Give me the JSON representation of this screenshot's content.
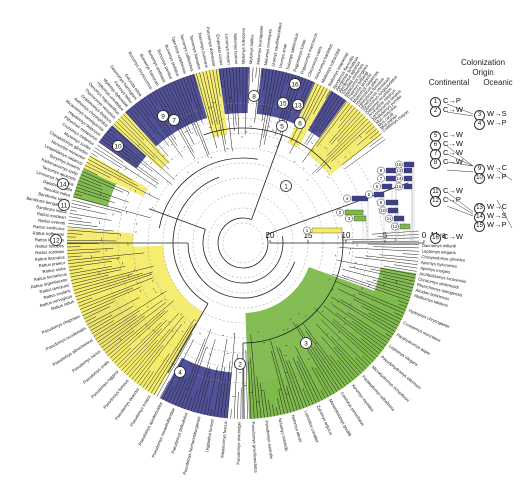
{
  "legend": {
    "title": "Colonization",
    "subtitle": "Origin",
    "col_continental": "Continental",
    "col_oceanic": "Oceanic",
    "rows": [
      {
        "num": "1",
        "text": "C→P"
      },
      {
        "num": "2",
        "text": "C→W"
      },
      {
        "num": "3",
        "text": "W→S"
      },
      {
        "num": "4",
        "text": "W→P"
      },
      {
        "num": "5",
        "text": "C→W"
      },
      {
        "num": "6",
        "text": "C→W"
      },
      {
        "num": "7",
        "text": "C→W"
      },
      {
        "num": "8",
        "text": "C→W"
      },
      {
        "num": "9",
        "text": "W→C"
      },
      {
        "num": "10",
        "text": "W→P"
      },
      {
        "num": "11",
        "text": "C→W"
      },
      {
        "num": "12",
        "text": "C→P"
      },
      {
        "num": "13",
        "text": "W→C"
      },
      {
        "num": "14",
        "text": "W→S"
      },
      {
        "num": "15",
        "text": "W→P"
      },
      {
        "num": "16",
        "text": "C→W"
      }
    ]
  },
  "axis": {
    "ticks": [
      "20",
      "15",
      "10",
      "5",
      "0"
    ],
    "unit": "Mya"
  },
  "colors": {
    "green": "#7dba4a",
    "yellow": "#f4ec6a",
    "blue": "#3e3e8e",
    "line": "#222222"
  },
  "tree_labels": {
    "top_arc": [
      "Bunomys chrysocomus",
      "Bunomys fratrorum",
      "Bunomys andrewsi",
      "Bunomys penitus",
      "Bunomys prolatus",
      "Taeromys celebensis",
      "Taeromys callitrichus",
      "Taeromys hamatus",
      "Taeromys punicans",
      "Paruromys dominator",
      "Eropeplus canus",
      "Lenomys meyeri",
      "Melomys burtoni",
      "Melomys rufescens",
      "Melomys lutillus",
      "Melomys leucogaster",
      "Melomys cervinipes",
      "Uromys caudimaculatus",
      "Uromys anak",
      "Solomys salebrosus",
      "Pogonomys loriae",
      "Pogonomys macrourus",
      "Chiruromys vates",
      "Xenuromys barbatus",
      "Mallomys rothschildi",
      "Mallomys istapantap"
    ],
    "right_arc": [
      "Apodemus flavicollis",
      "Apodemus sylvaticus",
      "Apodemus agrarius",
      "Tokudaia osimensis",
      "Malacomys longipes",
      "Praomys tullbergi",
      "Praomys jacksoni",
      "Mastomys natalensis",
      "Hylomyscus alleni",
      "Heimyscus fumosus",
      "Myomyscus verreauxii",
      "Stochomys longicaudatus",
      "Dasymys incomtus",
      "Arvicanthis niloticus",
      "Lemniscomys striatus",
      "Rhabdomys pumilio",
      "Mus musculus",
      "Mus caroli",
      "Mus pahari",
      "Coelomys mayori"
    ],
    "left_arc": [
      "Rattus rattus",
      "Rattus norvegicus",
      "Rattus exulans",
      "Rattus tanezumi",
      "Rattus argentiventer",
      "Rattus tiomanicus",
      "Rattus niobe",
      "Rattus praetor",
      "Rattus leucopus",
      "Rattus sordidus",
      "Rattus fuscipes",
      "Rattus lutreolus",
      "Rattus hoffmanni",
      "Rattus xanthurus",
      "Rattus everetti",
      "Rattus macleari",
      "Bandicota indica",
      "Bandicota bengalensis",
      "Bandicota savilei",
      "Nesokia indica",
      "Diplothrix legata",
      "Limnomys bryophilus",
      "Tarsomys apoensis",
      "Kadarsanomys sodyi",
      "Berylmys bowersi",
      "Leopoldamys sabanus",
      "Niviventer niviventer",
      "Chiropodomys gliroides",
      "Maxomys surifer",
      "Crunomys melanius",
      "Pithecheir melanurus",
      "Hapalomys delacouri",
      "Micaelamys namaquensis",
      "Aethomys chrysophilus",
      "Grammomys ibeanus",
      "Thamnomys venustus",
      "Oenomys hypoxanthus",
      "Hybomys univittatus",
      "Mylomys dybowskii",
      "Pelomys fallax",
      "Desmomys harringtoni",
      "Golunda ellioti"
    ],
    "bottom_arc": [
      "Hydromys chrysogaster",
      "Crossomys moncktoni",
      "Parahydromys asper",
      "Leptomys elegans",
      "Pseudohydromys ellermani",
      "Microhydromys richardsoni",
      "Paraleptomys wilhelmina",
      "Xeromys myoides",
      "Conilurus penicillatus",
      "Mesembriomys gouldii",
      "Zyzomys argurus",
      "Leporillus conditor",
      "Notomys alexis",
      "Notomys mitchellii",
      "Pseudomys australis",
      "Pseudomys gracilicaudatus",
      "Pseudomys shortridgei",
      "Mastacomys fuscus",
      "Leggadina forresti",
      "Pseudomys hermannsburgensis",
      "Pseudomys delicatulus",
      "Pseudomys novaehollandiae",
      "Pseudomys apodemoides",
      "Pseudomys bolami",
      "Pseudomys desertor",
      "Pseudomys fumeus",
      "Pseudomys higginsi",
      "Pseudomys oralis",
      "Pseudomys nanus",
      "Pseudomys albocinereus",
      "Pseudomys occidentalis",
      "Pseudomys chapmani"
    ],
    "inner_right": [
      "Dacnomys millardi",
      "Leptomys elegans",
      "Chiropodomys gliroides",
      "Apomys hylocoetes",
      "Apomys insignis",
      "Archboldomys luzonensis",
      "Chrotomys whiteheadi",
      "Rhynchomys isarogensis",
      "Akodon boliviensis",
      "Abditomys latidens"
    ]
  }
}
